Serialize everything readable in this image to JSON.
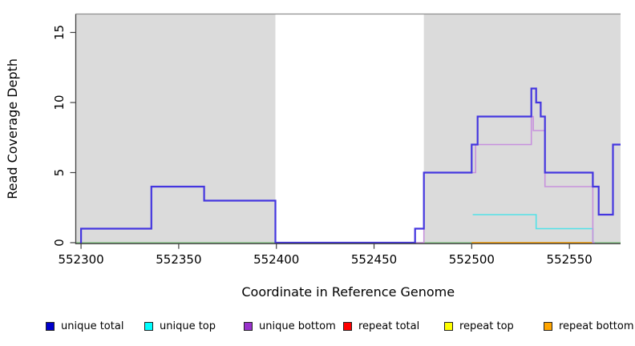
{
  "chart_data": {
    "type": "line",
    "subtype": "step-coverage",
    "title": "",
    "xlabel": "Coordinate in Reference Genome",
    "ylabel": "Read Coverage Depth",
    "xlim": [
      552297.3,
      552576.2
    ],
    "ylim": [
      0,
      16.3
    ],
    "xticks": [
      552300,
      552350,
      552400,
      552450,
      552500,
      552550
    ],
    "yticks": [
      0,
      5,
      10,
      15
    ],
    "grid": false,
    "legend_position": "bottom",
    "plot_top_border_color": "#8f8f8f",
    "axis_color": "#404040",
    "regions": [
      {
        "name": "covered-left",
        "start": 552297.3,
        "end": 552399.5,
        "color": "#dbdbdb"
      },
      {
        "name": "uncovered-gap",
        "start": 552399.5,
        "end": 552475.5,
        "color": "#ffffff"
      },
      {
        "name": "covered-right",
        "start": 552475.5,
        "end": 552576.2,
        "color": "#dbdbdb"
      }
    ],
    "series": [
      {
        "name": "unique total",
        "legend_color": "#0000cc",
        "line_color": "#4436df",
        "line_width": 2.2,
        "z": 5,
        "segments": [
          [
            552299.5,
            552300,
            0
          ],
          [
            552300,
            552336,
            1
          ],
          [
            552336,
            552363,
            4
          ],
          [
            552363,
            552399.5,
            3
          ],
          [
            552399.5,
            552471,
            0
          ],
          [
            552471,
            552475.5,
            1
          ],
          [
            552475.5,
            552500,
            5
          ],
          [
            552500,
            552503,
            7
          ],
          [
            552503,
            552530.5,
            9
          ],
          [
            552530.5,
            552533,
            11
          ],
          [
            552533,
            552535.3,
            10
          ],
          [
            552535.3,
            552537.5,
            9
          ],
          [
            552537.5,
            552562,
            5
          ],
          [
            552562,
            552565,
            4
          ],
          [
            552565,
            552572.3,
            2
          ],
          [
            552572.3,
            552576.2,
            7
          ]
        ]
      },
      {
        "name": "unique top",
        "legend_color": "#00ffff",
        "line_color": "#52e2e8",
        "line_width": 1.6,
        "z": 3,
        "segments": [
          [
            552500.5,
            552533,
            2
          ],
          [
            552533,
            552562,
            1
          ],
          [
            552562,
            552563,
            0
          ]
        ]
      },
      {
        "name": "unique bottom",
        "legend_color": "#9932cc",
        "line_color": "#c791dd",
        "line_width": 1.6,
        "z": 4,
        "segments": [
          [
            552399.5,
            552475.5,
            0
          ],
          [
            552475.5,
            552502,
            5
          ],
          [
            552502,
            552530.5,
            7
          ],
          [
            552530.5,
            552531.5,
            9
          ],
          [
            552531.5,
            552537.5,
            8
          ],
          [
            552537.5,
            552562,
            4
          ],
          [
            552562,
            552563,
            0
          ]
        ]
      },
      {
        "name": "repeat total",
        "legend_color": "#ff0000",
        "line_color": "#e00000",
        "line_width": 1.5,
        "z": 1,
        "segments": []
      },
      {
        "name": "repeat top",
        "legend_color": "#ffff00",
        "line_color": "#8bc98b",
        "line_width": 1.5,
        "z": 1,
        "segments": [
          [
            552297.3,
            552576.2,
            0
          ]
        ]
      },
      {
        "name": "repeat bottom",
        "legend_color": "#ffa500",
        "line_color": "#ff9b00",
        "line_width": 1.5,
        "z": 2,
        "segments": [
          [
            552500,
            552562,
            0
          ]
        ]
      }
    ]
  }
}
